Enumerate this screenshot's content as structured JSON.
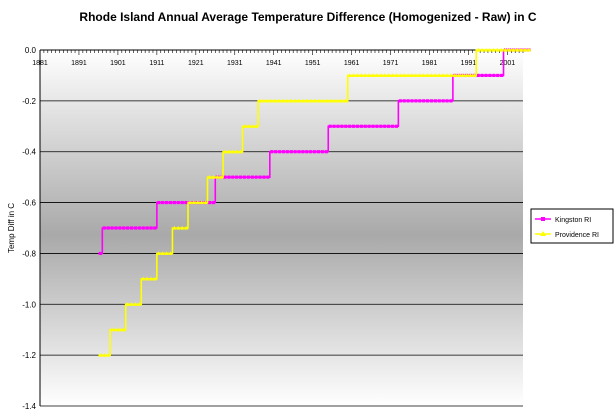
{
  "chart_data": {
    "type": "line",
    "title": "Rhode Island Annual Average Temperature Difference (Homogenized - Raw) in C",
    "xlabel": "",
    "ylabel": "Temp Diff in C",
    "xlim": [
      1881,
      2005
    ],
    "ylim": [
      -1.4,
      0.0
    ],
    "x_ticks": [
      "1881",
      "1891",
      "1901",
      "1911",
      "1921",
      "1931",
      "1941",
      "1951",
      "1961",
      "1971",
      "1981",
      "1991",
      "2001"
    ],
    "y_ticks": [
      "0.0",
      "-0.2",
      "-0.4",
      "-0.6",
      "-0.8",
      "-1.0",
      "-1.2",
      "-1.4"
    ],
    "y_tick_values": [
      0.0,
      -0.2,
      -0.4,
      -0.6,
      -0.8,
      -1.0,
      -1.2,
      -1.4
    ],
    "grid": true,
    "legend_position": "right",
    "series": [
      {
        "name": "Kingston RI",
        "color": "#ff00ff",
        "marker": "square",
        "steps": [
          {
            "from": 1896,
            "to": 1897,
            "value": -0.8
          },
          {
            "from": 1897,
            "to": 1911,
            "value": -0.7
          },
          {
            "from": 1911,
            "to": 1926,
            "value": -0.6
          },
          {
            "from": 1926,
            "to": 1940,
            "value": -0.5
          },
          {
            "from": 1940,
            "to": 1955,
            "value": -0.4
          },
          {
            "from": 1955,
            "to": 1973,
            "value": -0.3
          },
          {
            "from": 1973,
            "to": 1987,
            "value": -0.2
          },
          {
            "from": 1987,
            "to": 2000,
            "value": -0.1
          },
          {
            "from": 2000,
            "to": 2007,
            "value": 0.0
          }
        ]
      },
      {
        "name": "Providence RI",
        "color": "#ffff00",
        "marker": "triangle",
        "steps": [
          {
            "from": 1896,
            "to": 1899,
            "value": -1.2
          },
          {
            "from": 1899,
            "to": 1903,
            "value": -1.1
          },
          {
            "from": 1903,
            "to": 1907,
            "value": -1.0
          },
          {
            "from": 1907,
            "to": 1911,
            "value": -0.9
          },
          {
            "from": 1911,
            "to": 1915,
            "value": -0.8
          },
          {
            "from": 1915,
            "to": 1919,
            "value": -0.7
          },
          {
            "from": 1919,
            "to": 1924,
            "value": -0.6
          },
          {
            "from": 1924,
            "to": 1928,
            "value": -0.5
          },
          {
            "from": 1928,
            "to": 1933,
            "value": -0.4
          },
          {
            "from": 1933,
            "to": 1937,
            "value": -0.3
          },
          {
            "from": 1937,
            "to": 1943,
            "value": -0.2
          },
          {
            "from": 1943,
            "to": 1960,
            "value": -0.2
          },
          {
            "from": 1960,
            "to": 1993,
            "value": -0.1
          },
          {
            "from": 1993,
            "to": 2007,
            "value": 0.0
          }
        ]
      }
    ]
  }
}
